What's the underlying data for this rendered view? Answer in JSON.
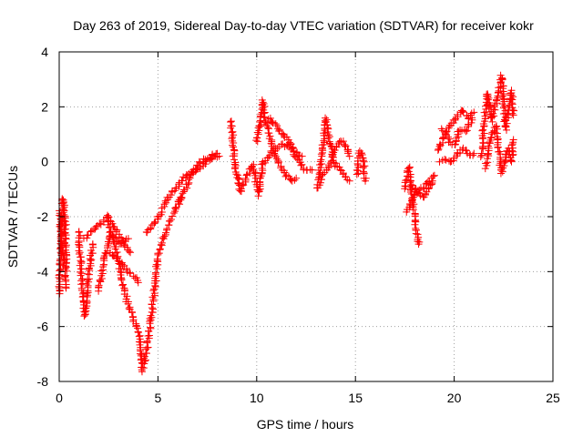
{
  "chart_data": {
    "type": "scatter",
    "title": "Day 263 of 2019, Sidereal Day-to-day VTEC variation (SDTVAR) for receiver kokr",
    "xlabel": "GPS time / hours",
    "ylabel": "SDTVAR / TECUs",
    "xlim": [
      0,
      25
    ],
    "ylim": [
      -8,
      4
    ],
    "xticks": [
      0,
      5,
      10,
      15,
      20,
      25
    ],
    "yticks": [
      -8,
      -6,
      -4,
      -2,
      0,
      2,
      4
    ],
    "xtick_labels": [
      "0",
      "5",
      "10",
      "15",
      "20",
      "25"
    ],
    "ytick_labels": [
      "-8",
      "-6",
      "-4",
      "-2",
      "0",
      "2",
      "4"
    ],
    "grid": true,
    "marker": "+",
    "series_color": "#ff0000",
    "tracks": [
      [
        [
          0.0,
          -4.8
        ],
        [
          0.1,
          -2.5
        ],
        [
          0.2,
          -1.3
        ],
        [
          0.3,
          -2.2
        ],
        [
          0.35,
          -4.6
        ]
      ],
      [
        [
          0.0,
          -1.8
        ],
        [
          0.15,
          -3.3
        ],
        [
          0.3,
          -3.9
        ]
      ],
      [
        [
          1.0,
          -2.5
        ],
        [
          1.1,
          -4.0
        ],
        [
          1.3,
          -5.6
        ],
        [
          1.5,
          -4.0
        ],
        [
          1.7,
          -3.0
        ]
      ],
      [
        [
          1.3,
          -2.8
        ],
        [
          1.8,
          -2.4
        ],
        [
          2.2,
          -2.2
        ],
        [
          2.5,
          -2.0
        ],
        [
          2.8,
          -2.4
        ],
        [
          3.2,
          -2.9
        ],
        [
          3.6,
          -3.3
        ]
      ],
      [
        [
          2.0,
          -4.7
        ],
        [
          2.3,
          -3.5
        ],
        [
          2.6,
          -2.6
        ],
        [
          3.0,
          -3.0
        ],
        [
          3.5,
          -2.8
        ]
      ],
      [
        [
          2.4,
          -2.0
        ],
        [
          2.8,
          -3.0
        ],
        [
          3.1,
          -4.0
        ],
        [
          3.4,
          -5.0
        ],
        [
          3.7,
          -5.6
        ],
        [
          3.9,
          -6.0
        ]
      ],
      [
        [
          2.6,
          -3.3
        ],
        [
          3.2,
          -3.7
        ],
        [
          3.5,
          -4.0
        ],
        [
          3.8,
          -4.2
        ],
        [
          4.0,
          -4.4
        ]
      ],
      [
        [
          4.0,
          -6.1
        ],
        [
          4.1,
          -6.6
        ],
        [
          4.2,
          -7.6
        ],
        [
          4.4,
          -7.0
        ],
        [
          4.6,
          -6.0
        ],
        [
          4.8,
          -4.8
        ],
        [
          5.0,
          -3.5
        ],
        [
          5.3,
          -2.7
        ],
        [
          5.6,
          -2.2
        ],
        [
          5.9,
          -1.7
        ],
        [
          6.2,
          -1.3
        ]
      ],
      [
        [
          4.4,
          -2.6
        ],
        [
          4.8,
          -2.3
        ],
        [
          5.2,
          -1.8
        ],
        [
          5.5,
          -1.3
        ],
        [
          5.9,
          -1.0
        ],
        [
          6.3,
          -0.6
        ],
        [
          6.7,
          -0.4
        ],
        [
          7.1,
          -0.2
        ],
        [
          7.5,
          0.0
        ],
        [
          7.9,
          0.2
        ],
        [
          8.1,
          0.2
        ]
      ],
      [
        [
          6.0,
          -1.5
        ],
        [
          6.4,
          -1.0
        ],
        [
          6.8,
          -0.3
        ],
        [
          7.2,
          0.0
        ],
        [
          7.6,
          0.2
        ],
        [
          8.0,
          0.3
        ]
      ],
      [
        [
          8.7,
          1.5
        ],
        [
          8.9,
          -0.2
        ],
        [
          9.2,
          -1.1
        ],
        [
          9.5,
          -0.5
        ],
        [
          9.8,
          -0.1
        ],
        [
          10.1,
          -1.2
        ],
        [
          10.3,
          0.0
        ]
      ],
      [
        [
          10.0,
          0.7
        ],
        [
          10.2,
          1.4
        ],
        [
          10.3,
          2.2
        ],
        [
          10.5,
          1.3
        ],
        [
          10.8,
          0.6
        ],
        [
          11.1,
          0.0
        ],
        [
          11.4,
          -0.4
        ],
        [
          11.7,
          -0.7
        ],
        [
          12.0,
          -0.6
        ]
      ],
      [
        [
          10.6,
          1.6
        ],
        [
          11.0,
          1.3
        ],
        [
          11.3,
          1.0
        ],
        [
          11.6,
          0.8
        ],
        [
          11.9,
          0.3
        ],
        [
          12.2,
          -0.1
        ],
        [
          12.5,
          -0.3
        ],
        [
          12.8,
          -0.3
        ]
      ],
      [
        [
          10.4,
          0.0
        ],
        [
          10.8,
          0.4
        ],
        [
          11.2,
          0.6
        ],
        [
          11.6,
          0.6
        ],
        [
          11.9,
          0.4
        ],
        [
          12.3,
          0.2
        ]
      ],
      [
        [
          13.1,
          -0.7
        ],
        [
          13.3,
          0.3
        ],
        [
          13.5,
          1.6
        ],
        [
          13.7,
          0.7
        ],
        [
          13.9,
          0.0
        ],
        [
          14.2,
          -0.3
        ],
        [
          14.5,
          -0.5
        ],
        [
          14.7,
          -0.7
        ]
      ],
      [
        [
          13.0,
          -1.0
        ],
        [
          13.3,
          -0.6
        ],
        [
          13.6,
          -0.2
        ],
        [
          13.9,
          0.4
        ],
        [
          14.2,
          0.8
        ],
        [
          14.5,
          0.6
        ],
        [
          14.7,
          0.2
        ]
      ],
      [
        [
          15.1,
          -0.5
        ],
        [
          15.2,
          0.4
        ],
        [
          15.4,
          0.1
        ],
        [
          15.5,
          -0.7
        ]
      ],
      [
        [
          17.5,
          -1.0
        ],
        [
          17.7,
          -0.2
        ],
        [
          17.9,
          -1.5
        ],
        [
          18.1,
          -2.6
        ],
        [
          18.2,
          -3.0
        ]
      ],
      [
        [
          17.6,
          -1.8
        ],
        [
          17.9,
          -1.3
        ],
        [
          18.2,
          -1.0
        ],
        [
          18.5,
          -0.9
        ],
        [
          18.8,
          -0.7
        ],
        [
          19.0,
          -0.5
        ]
      ],
      [
        [
          17.8,
          -0.8
        ],
        [
          18.1,
          -1.1
        ],
        [
          18.4,
          -1.3
        ],
        [
          18.7,
          -1.0
        ],
        [
          18.9,
          -0.7
        ]
      ],
      [
        [
          19.2,
          0.4
        ],
        [
          19.5,
          1.0
        ],
        [
          19.8,
          1.3
        ],
        [
          20.1,
          1.6
        ],
        [
          20.4,
          1.9
        ],
        [
          20.7,
          1.6
        ],
        [
          21.0,
          1.8
        ]
      ],
      [
        [
          19.3,
          0.0
        ],
        [
          19.6,
          0.1
        ],
        [
          19.9,
          0.0
        ],
        [
          20.2,
          0.3
        ],
        [
          20.5,
          0.5
        ],
        [
          20.8,
          0.2
        ],
        [
          21.0,
          0.3
        ]
      ],
      [
        [
          19.4,
          1.2
        ],
        [
          19.7,
          0.8
        ],
        [
          20.0,
          0.6
        ],
        [
          20.3,
          1.2
        ],
        [
          20.6,
          1.1
        ],
        [
          20.9,
          1.6
        ]
      ],
      [
        [
          21.4,
          0.2
        ],
        [
          21.5,
          1.4
        ],
        [
          21.7,
          2.5
        ],
        [
          21.9,
          1.5
        ],
        [
          22.2,
          2.4
        ],
        [
          22.4,
          3.1
        ],
        [
          22.6,
          1.2
        ],
        [
          22.9,
          2.6
        ],
        [
          23.0,
          1.7
        ]
      ],
      [
        [
          21.6,
          -0.2
        ],
        [
          21.8,
          0.7
        ],
        [
          22.1,
          1.3
        ],
        [
          22.4,
          -0.4
        ],
        [
          22.7,
          0.5
        ],
        [
          22.9,
          0.0
        ],
        [
          23.0,
          0.8
        ]
      ]
    ]
  }
}
